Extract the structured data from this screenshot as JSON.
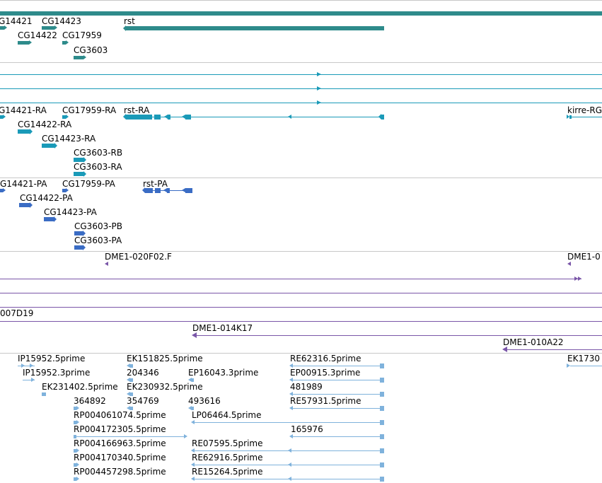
{
  "colors": {
    "gene": "#2e8b8b",
    "transcript": "#1a9ab8",
    "protein": "#3a6cc4",
    "clone": "#7a56a8",
    "est": "#7fb2dc",
    "separator": "#c8c8c8"
  },
  "tracks": {
    "genes": {
      "labels": [
        "G14421",
        "CG14423",
        "rst",
        "CG14422",
        "CG17959",
        "CG3603"
      ]
    },
    "transcripts": {
      "labels": [
        "G14421-RA",
        "CG17959-RA",
        "rst-RA",
        "kirre-RG",
        "CG14422-RA",
        "CG14423-RA",
        "CG3603-RB",
        "CG3603-RA"
      ]
    },
    "proteins": {
      "labels": [
        "G14421-PA",
        "CG17959-PA",
        "rst-PA",
        "CG14422-PA",
        "CG14423-PA",
        "CG3603-PB",
        "CG3603-PA"
      ]
    },
    "clones": {
      "labels": [
        "DME1-020F02.F",
        "DME1-0",
        "007D19",
        "DME1-014K17",
        "DME1-010A22"
      ]
    },
    "ests": {
      "labels": [
        "IP15952.5prime",
        "EK151825.5prime",
        "RE62316.5prime",
        "EK1730",
        "IP15952.3prime",
        "204346",
        "EP16043.3prime",
        "EP00915.3prime",
        "EK231402.5prime",
        "EK230932.5prime",
        "481989",
        "364892",
        "354769",
        "493616",
        "RE57931.5prime",
        "RP004061074.5prime",
        "LP06464.5prime",
        "RP004172305.5prime",
        "165976",
        "RP004166963.5prime",
        "RE07595.5prime",
        "RP004170340.5prime",
        "RE62916.5prime",
        "RP004457298.5prime",
        "RE15264.5prime"
      ]
    }
  }
}
